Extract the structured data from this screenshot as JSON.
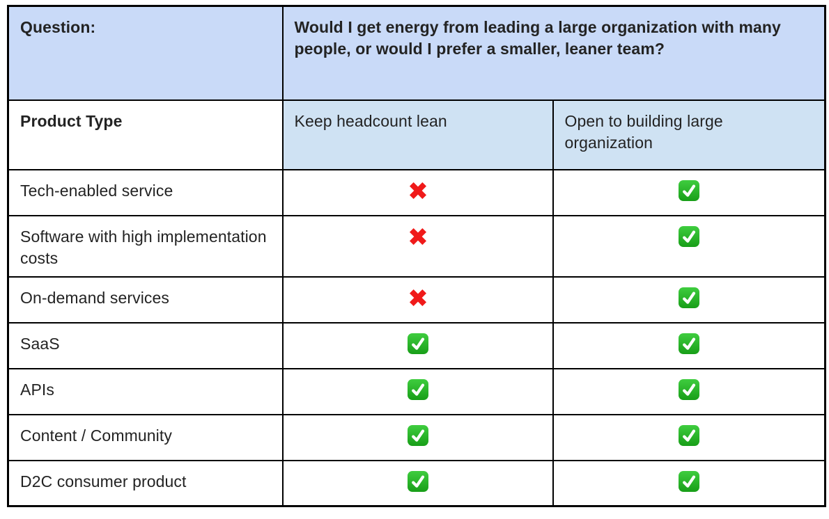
{
  "table": {
    "question": {
      "label": "Question:",
      "text": "Would I get energy from leading a large organization with many people, or would I prefer a smaller, leaner team?"
    },
    "headers": {
      "product_type": "Product Type",
      "lean": "Keep headcount lean",
      "large": "Open to building large organization"
    },
    "rows": [
      {
        "label": "Tech-enabled service",
        "lean": "no",
        "large": "yes"
      },
      {
        "label": "Software with high implementation costs",
        "lean": "no",
        "large": "yes"
      },
      {
        "label": "On-demand services",
        "lean": "no",
        "large": "yes"
      },
      {
        "label": "SaaS",
        "lean": "yes",
        "large": "yes"
      },
      {
        "label": "APIs",
        "lean": "yes",
        "large": "yes"
      },
      {
        "label": "Content / Community",
        "lean": "yes",
        "large": "yes"
      },
      {
        "label": "D2C consumer product",
        "lean": "yes",
        "large": "yes"
      }
    ],
    "icons": {
      "yes": "check-icon",
      "no": "cross-icon"
    },
    "colors": {
      "question_row_bg": "#c9daf8",
      "header_row_bg": "#cfe2f3",
      "table_border": "#000000",
      "cross_red": "#f01a1a",
      "check_green_light": "#3fcd3f",
      "check_green_dark": "#189e18",
      "text": "#232323"
    }
  }
}
